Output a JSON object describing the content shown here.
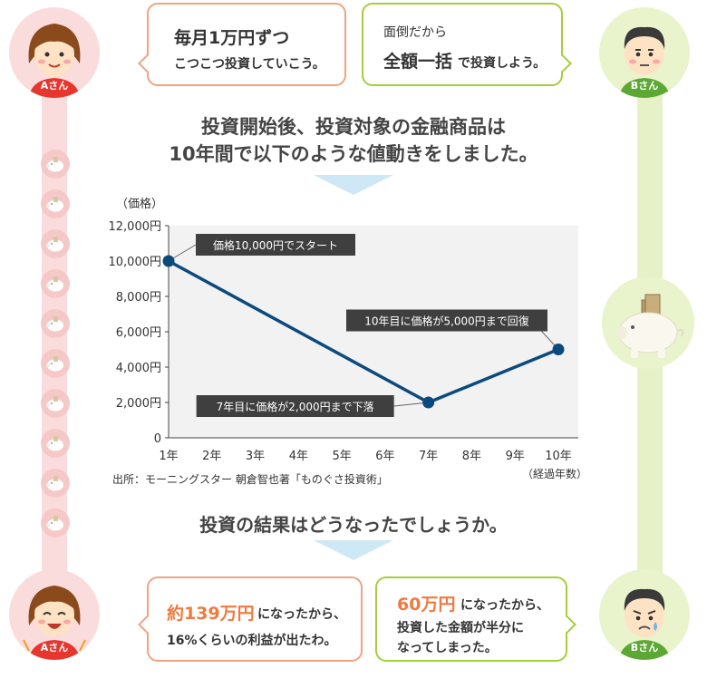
{
  "person_a": {
    "name": "Aさん",
    "intro": {
      "line1": "毎月1万円ずつ",
      "line2": "こつこつ投資していこう。"
    },
    "result": {
      "highlight": "約139万円",
      "line1_rest": "になったから、",
      "line2": "16%くらいの利益が出たわ。"
    }
  },
  "person_b": {
    "name": "Bさん",
    "intro": {
      "line1": "面倒だから",
      "highlight": "全額一括",
      "line2_rest": "で投資しよう。"
    },
    "result": {
      "highlight": "60万円",
      "line1_rest": "になったから、",
      "line2": "投資した金額が半分に",
      "line3": "なってしまった。"
    }
  },
  "headline": {
    "line1": "投資開始後、投資対象の金融商品は",
    "line2": "10年間で以下のような値動きをしました。"
  },
  "question": "投資の結果はどうなったでしょうか。",
  "source": "出所：モーニングスター 朝倉智也著「ものぐさ投資術」",
  "colors": {
    "line": "#0c4a7d",
    "bubble_a_border": "#f1a27e",
    "bubble_b_border": "#a6cd3c",
    "rail_a": "#fbdcdc",
    "rail_b": "#e7f1c8",
    "callout": "#3f3f3f"
  },
  "icons": {
    "coin": "piggy-bank-icon",
    "center_b": "piggy-bank-with-money-icon"
  },
  "chart_data": {
    "type": "line",
    "ylabel": "（価格）",
    "xlabel": "（経過年数）",
    "x": [
      "1年",
      "2年",
      "3年",
      "4年",
      "5年",
      "6年",
      "7年",
      "8年",
      "9年",
      "10年"
    ],
    "ytick_labels": [
      "0",
      "2,000円",
      "4,000円",
      "6,000円",
      "8,000円",
      "10,000円",
      "12,000円"
    ],
    "ylim": [
      0,
      12000
    ],
    "grid": false,
    "series": [
      {
        "x": [
          1,
          7,
          10
        ],
        "values": [
          10000,
          2000,
          5000
        ]
      }
    ],
    "annotations": [
      {
        "text": "価格10,000円でスタート",
        "x": 1,
        "y": 10000
      },
      {
        "text": "7年目に価格が2,000円まで下落",
        "x": 7,
        "y": 2000
      },
      {
        "text": "10年目に価格が5,000円まで回復",
        "x": 10,
        "y": 5000
      }
    ]
  }
}
